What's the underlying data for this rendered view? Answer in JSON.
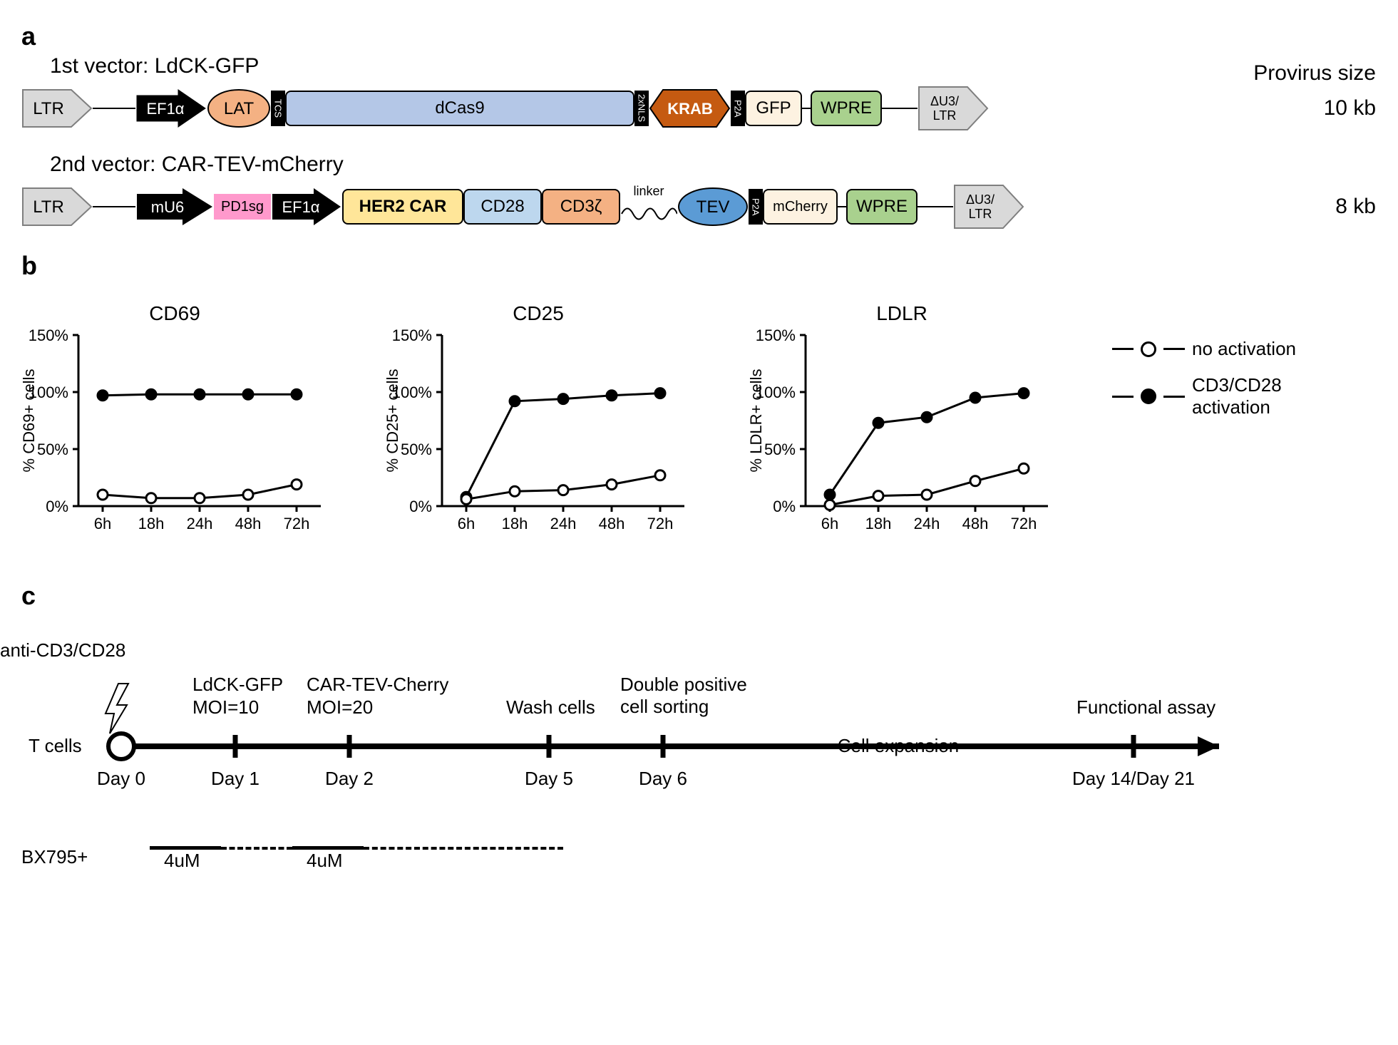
{
  "panel_a": {
    "label": "a",
    "vector1_title": "1st vector: LdCK-GFP",
    "vector2_title": "2nd vector: CAR-TEV-mCherry",
    "provirus_header": "Provirus size",
    "provirus1": "10 kb",
    "provirus2": "8 kb",
    "vector1": {
      "ltr": "LTR",
      "ef1a": "EF1α",
      "lat": "LAT",
      "tcs": "TCS",
      "dcas9": "dCas9",
      "nls": "2xNLS",
      "krab": "KRAB",
      "p2a": "P2A",
      "gfp": "GFP",
      "wpre": "WPRE",
      "du3": "ΔU3/\nLTR"
    },
    "vector2": {
      "ltr": "LTR",
      "mu6": "mU6",
      "pd1sg": "PD1sg",
      "ef1a": "EF1α",
      "her2": "HER2 CAR",
      "cd28": "CD28",
      "cd3z": "CD3ζ",
      "linker": "linker",
      "tev": "TEV",
      "p2a": "P2A",
      "mcherry": "mCherry",
      "wpre": "WPRE",
      "du3": "ΔU3/\nLTR"
    },
    "colors": {
      "ltr_fill": "#d9d9d9",
      "ef1a_fill": "#000000",
      "ef1a_text": "#ffffff",
      "lat_fill": "#f4b183",
      "tcs_fill": "#000000",
      "dcas9_fill": "#b4c7e7",
      "krab_fill": "#c55a11",
      "krab_text": "#ffffff",
      "p2a_fill": "#000000",
      "gfp_fill": "#fdf2e1",
      "wpre_fill": "#a9d18e",
      "du3_fill": "#d9d9d9",
      "mu6_fill": "#000000",
      "mu6_text": "#ffffff",
      "pd1sg_fill": "#ff99cc",
      "her2_fill": "#ffe699",
      "cd28_fill": "#bdd7ee",
      "cd3z_fill": "#f4b183",
      "tev_fill": "#5b9bd5",
      "mcherry_fill": "#fdf2e1"
    }
  },
  "panel_b": {
    "label": "b",
    "charts": [
      {
        "title": "CD69",
        "ylabel": "% CD69+ cells",
        "xticks": [
          "6h",
          "18h",
          "24h",
          "48h",
          "72h"
        ],
        "yticks": [
          "0%",
          "50%",
          "100%",
          "150%"
        ],
        "ylim": [
          0,
          150
        ],
        "series": {
          "no_activation": [
            10,
            7,
            7,
            10,
            19
          ],
          "activated": [
            97,
            98,
            98,
            98,
            98
          ]
        }
      },
      {
        "title": "CD25",
        "ylabel": "% CD25+ cells",
        "xticks": [
          "6h",
          "18h",
          "24h",
          "48h",
          "72h"
        ],
        "yticks": [
          "0%",
          "50%",
          "100%",
          "150%"
        ],
        "ylim": [
          0,
          150
        ],
        "series": {
          "no_activation": [
            6,
            13,
            14,
            19,
            27
          ],
          "activated": [
            8,
            92,
            94,
            97,
            99
          ]
        }
      },
      {
        "title": "LDLR",
        "ylabel": "% LDLR+ cells",
        "xticks": [
          "6h",
          "18h",
          "24h",
          "48h",
          "72h"
        ],
        "yticks": [
          "0%",
          "50%",
          "100%",
          "150%"
        ],
        "ylim": [
          0,
          150
        ],
        "series": {
          "no_activation": [
            1,
            9,
            10,
            22,
            33
          ],
          "activated": [
            10,
            73,
            78,
            95,
            99
          ]
        }
      }
    ],
    "legend": {
      "open": "no activation",
      "filled": "CD3/CD28\nactivation"
    },
    "style": {
      "line_color": "#000000",
      "marker_radius": 7,
      "line_width": 3,
      "axis_color": "#000000",
      "font_size_axis": 22,
      "font_size_title": 28
    }
  },
  "panel_c": {
    "label": "c",
    "events": {
      "anti": "anti-CD3/CD28",
      "tcells": "T cells",
      "ldck": "LdCK-GFP",
      "ldck_moi": "MOI=10",
      "cartev": "CAR-TEV-Cherry",
      "cartev_moi": "MOI=20",
      "wash": "Wash cells",
      "sort": "Double positive\ncell sorting",
      "expansion": "Cell expansion",
      "assay": "Functional assay"
    },
    "days": {
      "d0": "Day 0",
      "d1": "Day 1",
      "d2": "Day 2",
      "d5": "Day 5",
      "d6": "Day 6",
      "d14": "Day 14/Day 21"
    },
    "bx": {
      "label": "BX795+",
      "dose1": "4uM",
      "dose2": "4uM"
    },
    "positions": {
      "d0": 140,
      "d1": 300,
      "d2": 460,
      "d5": 740,
      "d6": 900,
      "d14": 1560,
      "timeline_end": 1680
    }
  }
}
